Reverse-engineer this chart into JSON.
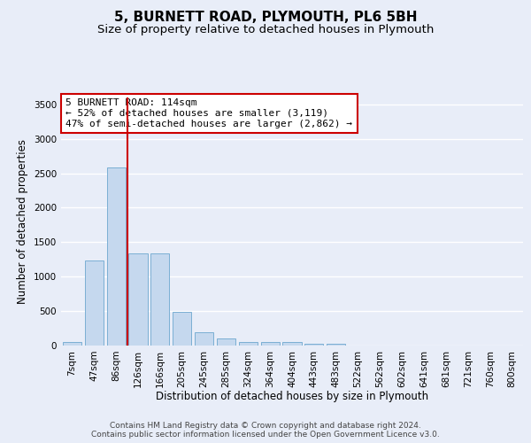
{
  "title": "5, BURNETT ROAD, PLYMOUTH, PL6 5BH",
  "subtitle": "Size of property relative to detached houses in Plymouth",
  "xlabel": "Distribution of detached houses by size in Plymouth",
  "ylabel": "Number of detached properties",
  "categories": [
    "7sqm",
    "47sqm",
    "86sqm",
    "126sqm",
    "166sqm",
    "205sqm",
    "245sqm",
    "285sqm",
    "324sqm",
    "364sqm",
    "404sqm",
    "443sqm",
    "483sqm",
    "522sqm",
    "562sqm",
    "602sqm",
    "641sqm",
    "681sqm",
    "721sqm",
    "760sqm",
    "800sqm"
  ],
  "values": [
    55,
    1230,
    2580,
    1340,
    1340,
    495,
    190,
    105,
    55,
    55,
    55,
    30,
    30,
    0,
    0,
    0,
    0,
    0,
    0,
    0,
    0
  ],
  "bar_color": "#c5d8ee",
  "bar_edge_color": "#7bafd4",
  "vline_index": 2.5,
  "vline_color": "#cc0000",
  "annotation_text": "5 BURNETT ROAD: 114sqm\n← 52% of detached houses are smaller (3,119)\n47% of semi-detached houses are larger (2,862) →",
  "annotation_box_facecolor": "#ffffff",
  "annotation_box_edgecolor": "#cc0000",
  "ylim": [
    0,
    3600
  ],
  "yticks": [
    0,
    500,
    1000,
    1500,
    2000,
    2500,
    3000,
    3500
  ],
  "bg_color": "#e8edf8",
  "grid_color": "#ffffff",
  "title_fontsize": 11,
  "subtitle_fontsize": 9.5,
  "ylabel_fontsize": 8.5,
  "xlabel_fontsize": 8.5,
  "tick_fontsize": 7.5,
  "annot_fontsize": 8,
  "footer_fontsize": 6.5,
  "footer_line1": "Contains HM Land Registry data © Crown copyright and database right 2024.",
  "footer_line2": "Contains public sector information licensed under the Open Government Licence v3.0."
}
